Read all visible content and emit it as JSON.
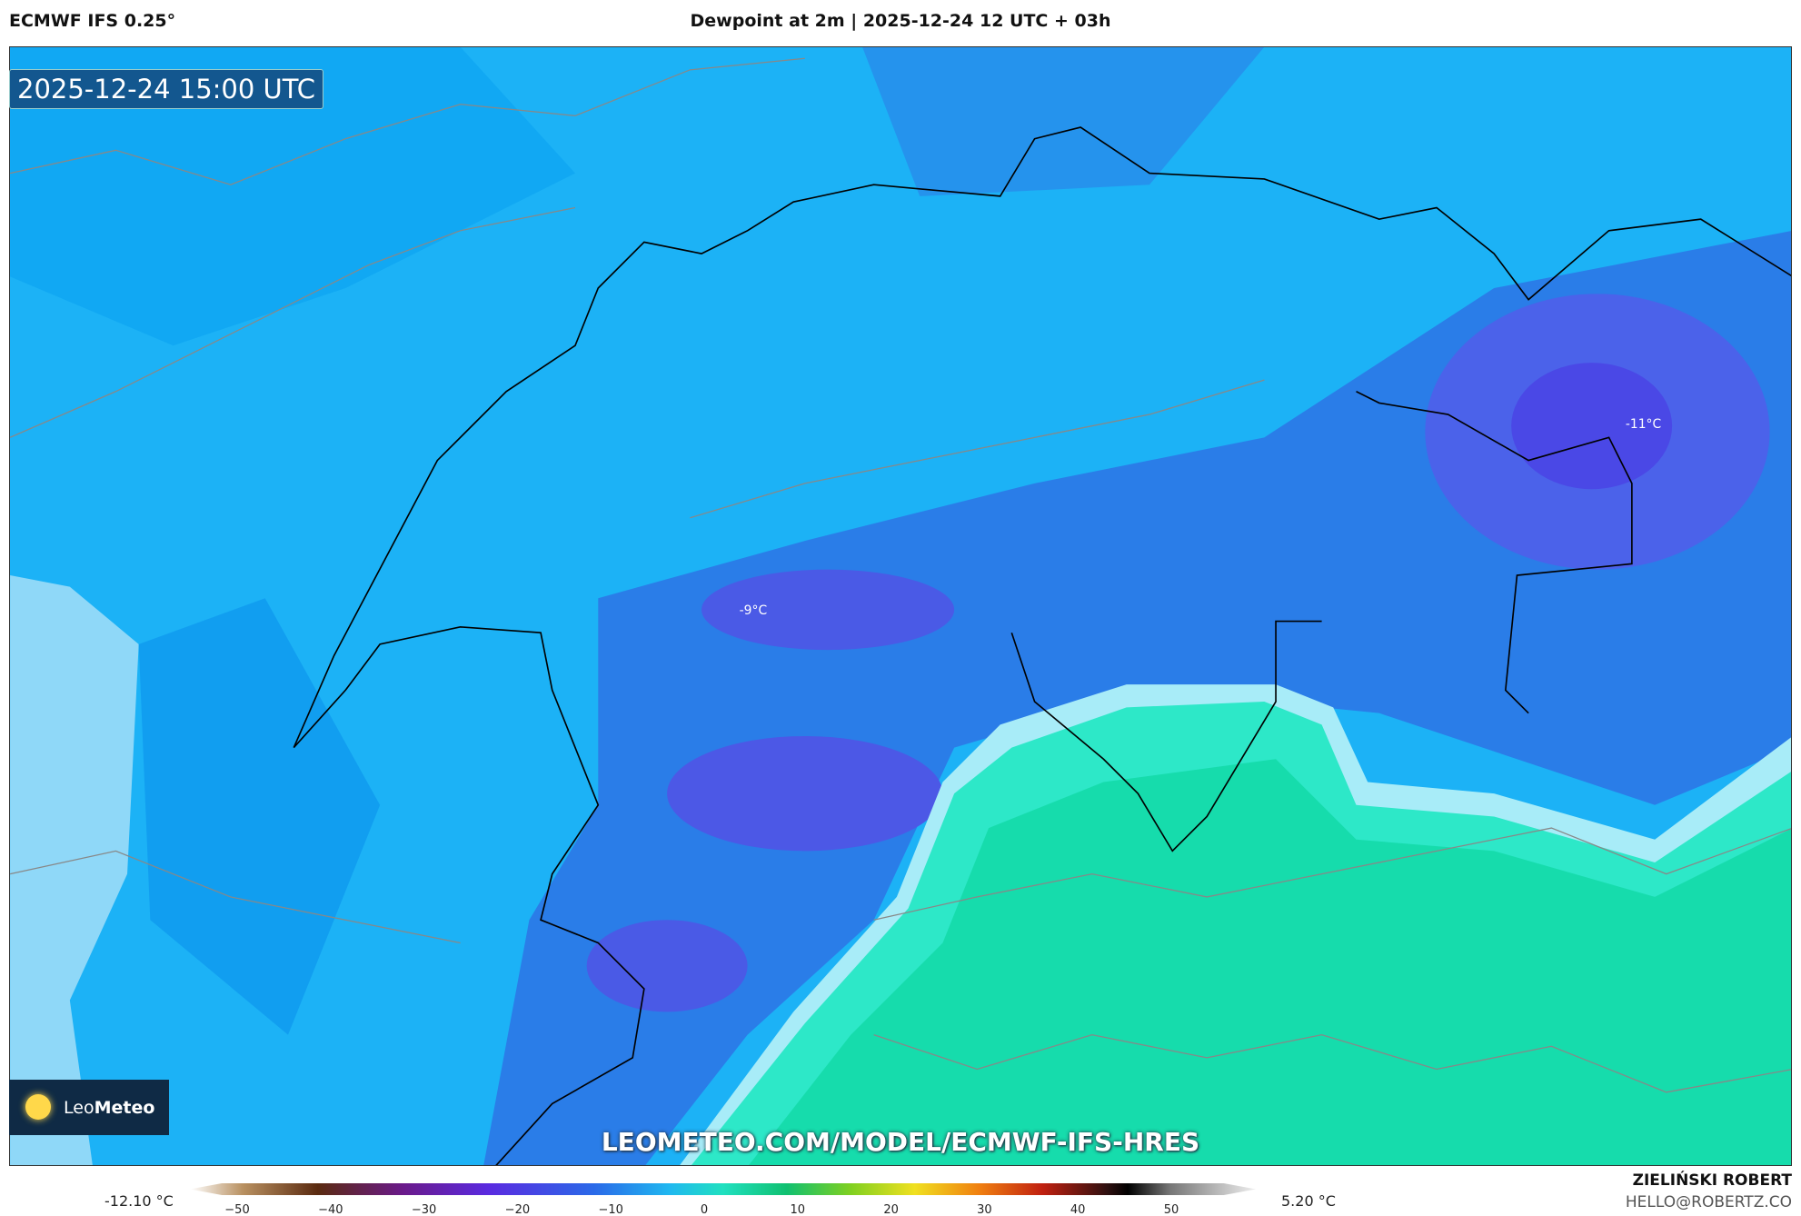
{
  "header": {
    "model": "ECMWF IFS 0.25°",
    "title": "Dewpoint at 2m | 2025-12-24 12 UTC + 03h"
  },
  "map": {
    "timestamp": "2025-12-24 15:00 UTC",
    "labels": [
      "-9°C",
      "-11°C"
    ],
    "watermark": "LEOMETEO.COM/MODEL/ECMWF-IFS-HRES",
    "logo": {
      "leo": "Leo",
      "meteo": "Meteo"
    }
  },
  "colorbar": {
    "min_label": "-12.10 °C",
    "max_label": "5.20 °C",
    "ticks": [
      "−50",
      "−40",
      "−30",
      "−20",
      "−10",
      "0",
      "10",
      "20",
      "30",
      "40",
      "50"
    ]
  },
  "footer": {
    "author": "ZIELIŃSKI ROBERT",
    "contact": "HELLO@ROBERTZ.CO"
  }
}
